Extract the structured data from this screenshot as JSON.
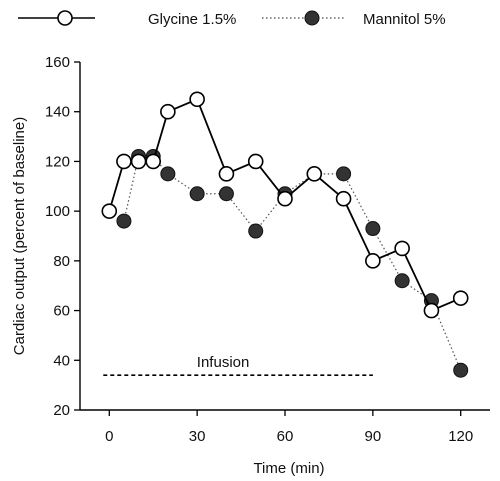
{
  "chart_data": {
    "type": "line",
    "title": "",
    "xlabel": "Time (min)",
    "ylabel": "Cardiac output (percent of baseline)",
    "xlim": [
      -10,
      130
    ],
    "ylim": [
      20,
      160
    ],
    "x_ticks": [
      0,
      30,
      60,
      90,
      120
    ],
    "y_ticks": [
      20,
      40,
      60,
      80,
      100,
      120,
      140,
      160
    ],
    "grid": false,
    "legend_position": "top",
    "series": [
      {
        "name": "Glycine 1.5%",
        "style": "solid-line-open-circle",
        "color": "#000000",
        "x": [
          0,
          5,
          10,
          15,
          20,
          30,
          40,
          50,
          60,
          70,
          80,
          90,
          100,
          110,
          120
        ],
        "y": [
          100,
          120,
          120,
          120,
          140,
          145,
          115,
          120,
          105,
          115,
          105,
          80,
          85,
          60,
          65
        ]
      },
      {
        "name": "Mannitol 5%",
        "style": "dotted-line-filled-circle",
        "color": "#333333",
        "x": [
          5,
          10,
          15,
          20,
          30,
          40,
          50,
          60,
          70,
          80,
          90,
          100,
          110,
          120
        ],
        "y": [
          96,
          122,
          122,
          115,
          107,
          107,
          92,
          107,
          115,
          115,
          93,
          72,
          64,
          36
        ]
      }
    ],
    "annotations": [
      {
        "text": "Infusion",
        "x_start": 0,
        "x_end": 90,
        "y": 34,
        "line_style": "dashed"
      }
    ]
  }
}
